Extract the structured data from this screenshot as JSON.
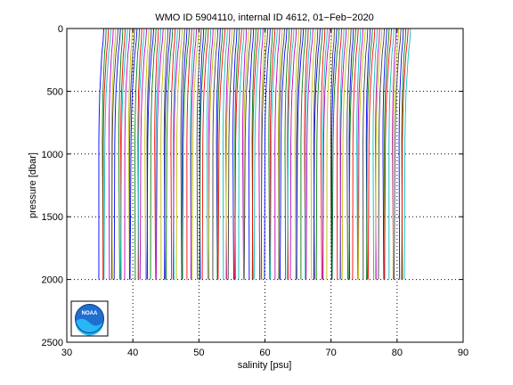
{
  "chart_data": {
    "type": "line",
    "title": "WMO ID 5904110, internal ID 4612, 01−Feb−2020",
    "xlabel": "salinity [psu]",
    "ylabel": "pressure [dbar]",
    "xlim": [
      30,
      90
    ],
    "ylim": [
      0,
      2500
    ],
    "y_reversed": true,
    "grid": true,
    "x_ticks": [
      30,
      40,
      50,
      60,
      70,
      80,
      90
    ],
    "y_ticks": [
      0,
      500,
      1000,
      1500,
      2000,
      2500
    ],
    "profile_offset_step_psu": 0.36,
    "num_profiles": 130,
    "series": [
      {
        "pressure": [
          0,
          100,
          200,
          300,
          400,
          500,
          700,
          900,
          1100,
          1300,
          1500,
          1700,
          1850,
          2000
        ],
        "salinity": [
          35.6,
          35.5,
          35.3,
          35.2,
          35.1,
          35.0,
          34.9,
          34.85,
          34.85,
          34.85,
          34.85,
          34.85,
          34.85,
          34.85
        ]
      }
    ],
    "series_colors": [
      "#0000ff",
      "#008000",
      "#ff0000",
      "#00bfbf",
      "#bf00bf",
      "#bfbf00",
      "#404040"
    ],
    "logo": "noaa-logo",
    "logo_text": "NOAA"
  }
}
